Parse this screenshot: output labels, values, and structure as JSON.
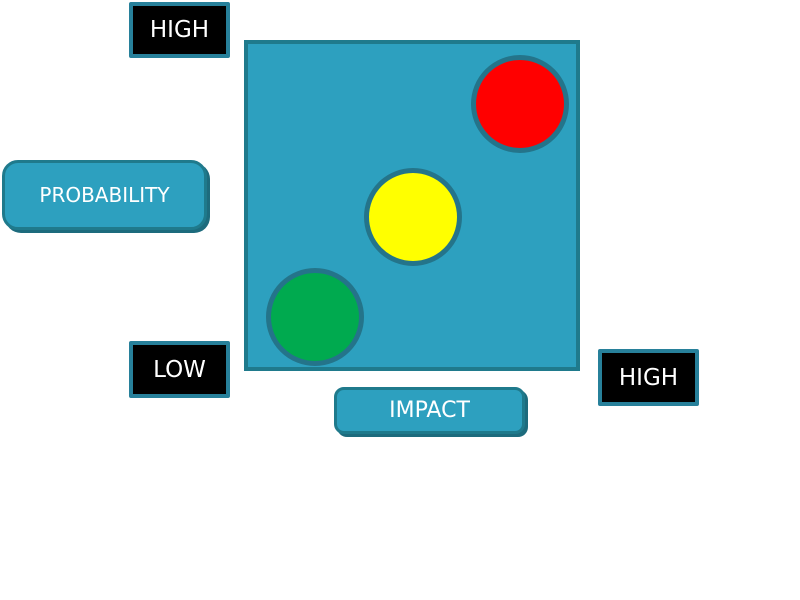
{
  "colors": {
    "matrix_fill": "#2da0bf",
    "label_bg": "#2da0bf",
    "tag_bg": "#000000",
    "high_risk": "#ff0000",
    "medium_risk": "#ffff00",
    "low_risk": "#00aa4f"
  },
  "axes": {
    "y_label": "PROBABILITY",
    "x_label": "IMPACT",
    "y_high": "HIGH",
    "origin_low": "LOW",
    "x_high": "HIGH"
  }
}
